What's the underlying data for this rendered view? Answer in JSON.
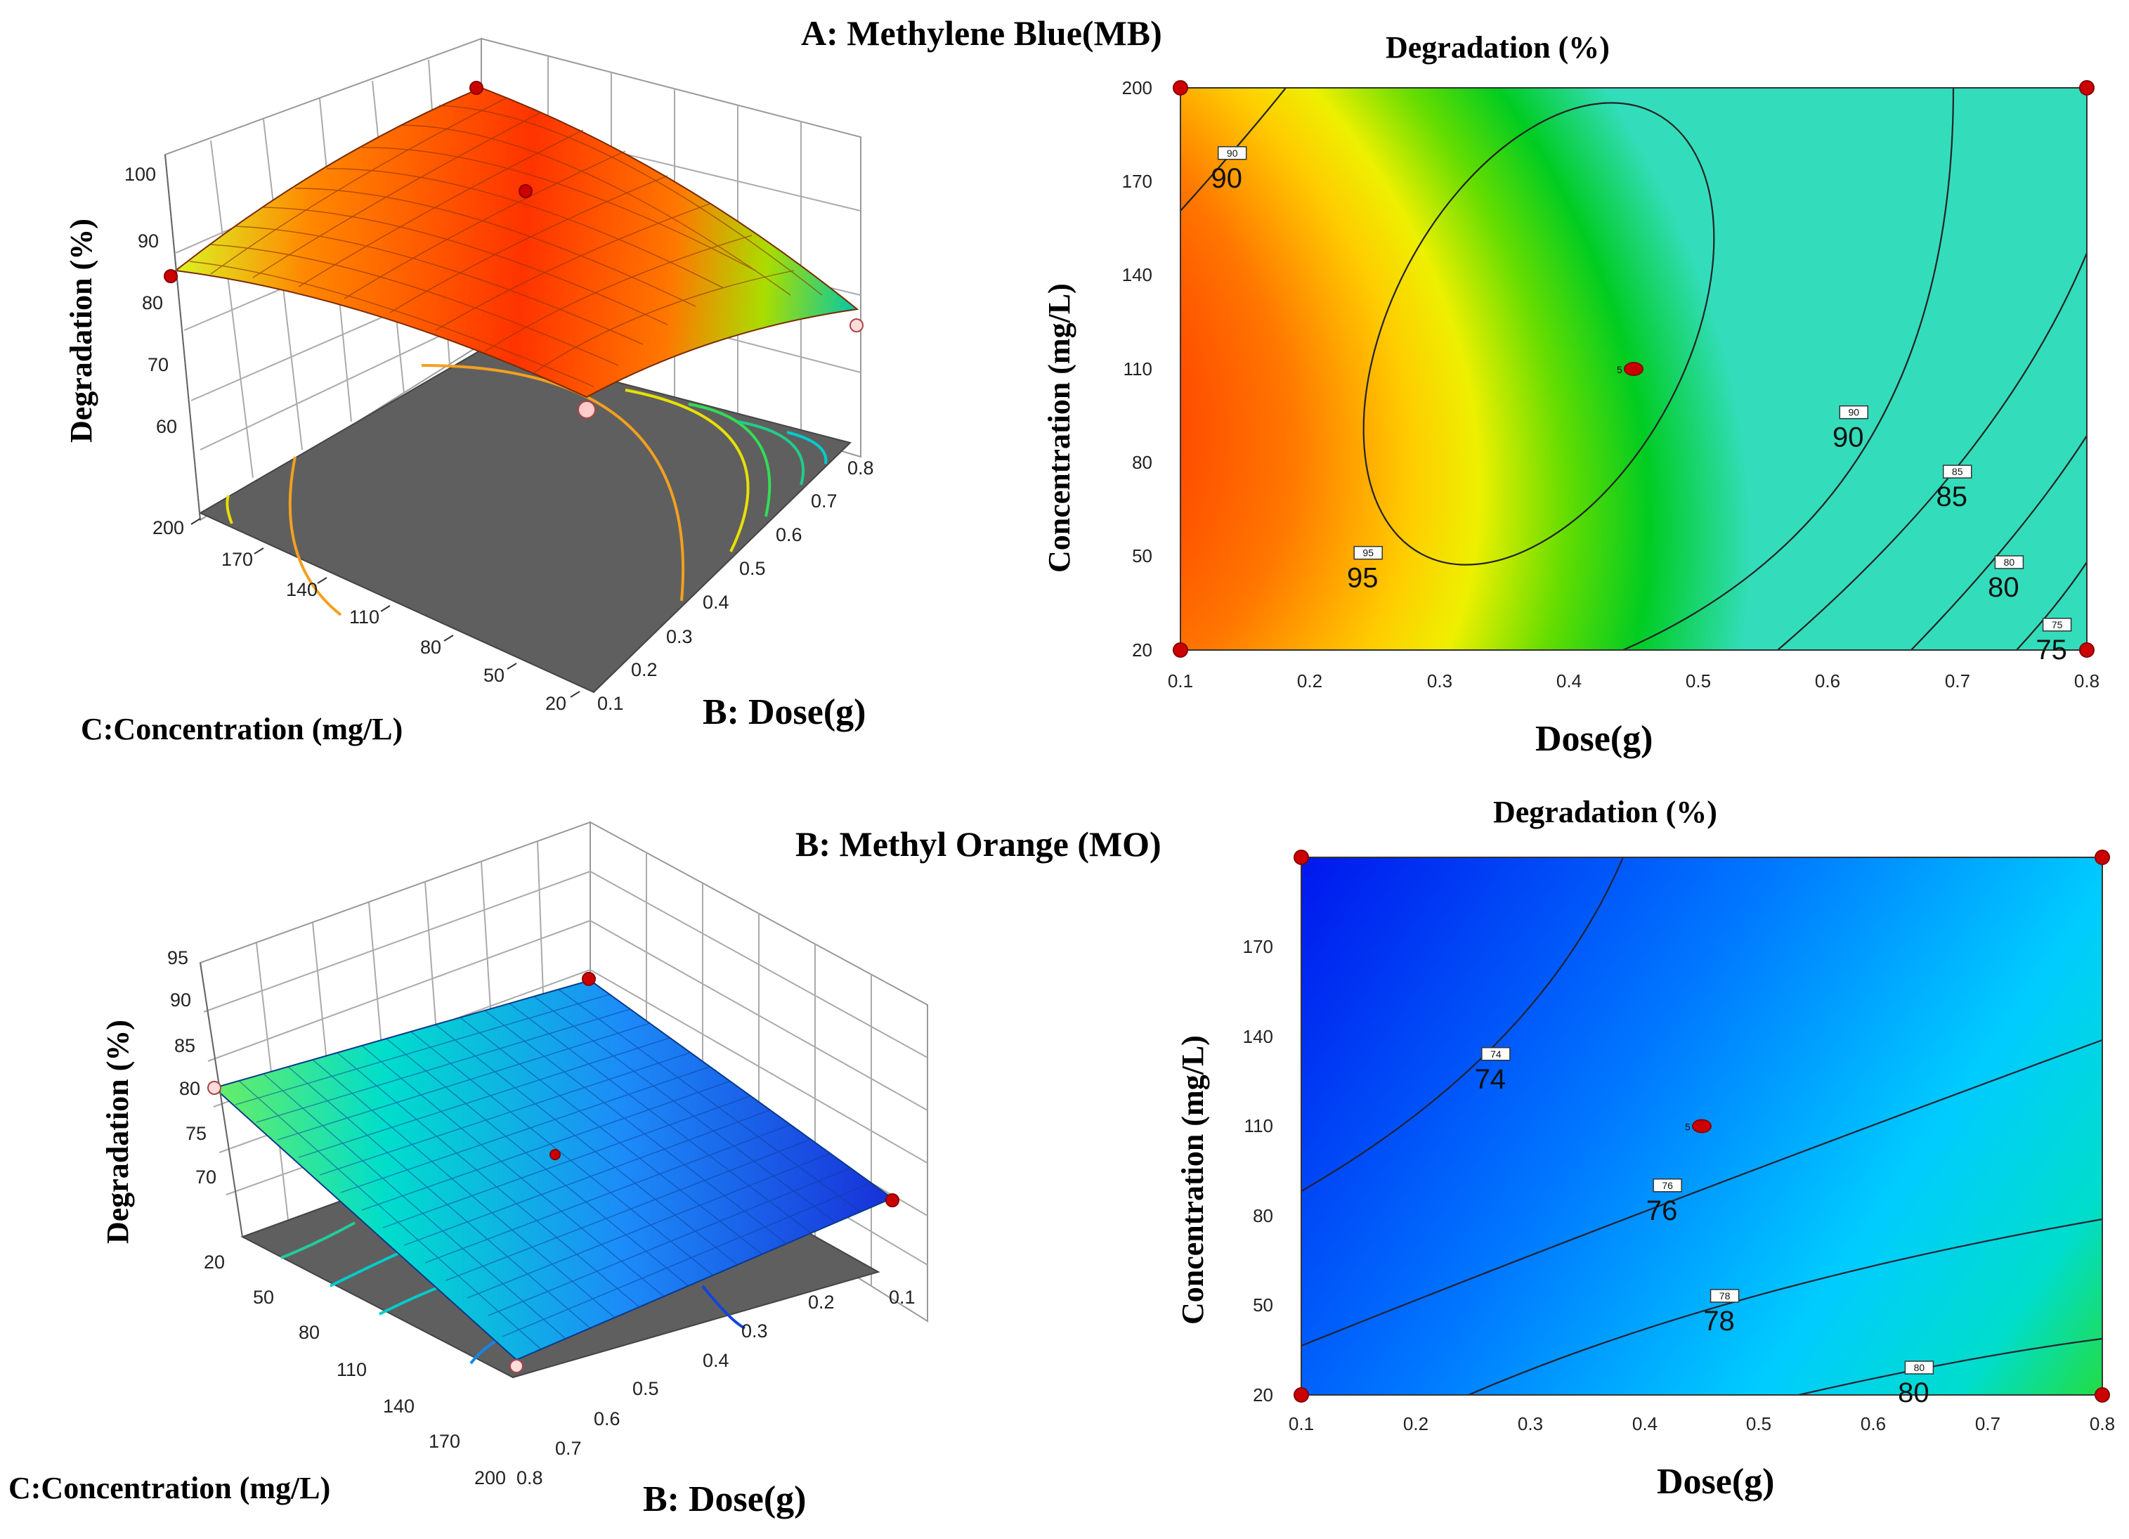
{
  "panels": {
    "mb": {
      "label": "A: Methylene Blue(MB)"
    },
    "mo": {
      "label": "B: Methyl Orange (MO)"
    }
  },
  "colors": {
    "mb_map": [
      "#00cc33",
      "#33dd00",
      "#bbee00",
      "#ffee00",
      "#ffaa00",
      "#ff6600",
      "#ff2200"
    ],
    "mo_map": [
      "#0022ee",
      "#0088ff",
      "#00ddff",
      "#22ee66"
    ],
    "floor": "#5f5f5f",
    "design_point": "#cc0000"
  },
  "chart_data": [
    {
      "id": "mb_surface",
      "type": "surface3d",
      "zlabel": "Degradation (%)",
      "xlabel": "B: Dose(g)",
      "ylabel": "C:Concentration  (mg/L)",
      "zticks": [
        "60",
        "70",
        "80",
        "90",
        "100"
      ],
      "xticks": [
        "0.1",
        "0.2",
        "0.3",
        "0.4",
        "0.5",
        "0.6",
        "0.7",
        "0.8"
      ],
      "yticks": [
        "200",
        "170",
        "140",
        "110",
        "80",
        "50",
        "20"
      ],
      "xlim": [
        0.1,
        0.8
      ],
      "ylim": [
        20,
        200
      ],
      "zlim": [
        55,
        105
      ]
    },
    {
      "id": "mb_contour",
      "type": "contour",
      "title": "Degradation (%)",
      "xlabel": "Dose(g)",
      "ylabel": "Concentration  (mg/L)",
      "xticks": [
        "0.1",
        "0.2",
        "0.3",
        "0.4",
        "0.5",
        "0.6",
        "0.7",
        "0.8"
      ],
      "yticks": [
        "20",
        "50",
        "80",
        "110",
        "140",
        "170",
        "200"
      ],
      "xlim": [
        0.1,
        0.8
      ],
      "ylim": [
        20,
        200
      ],
      "levels": [
        {
          "value": 95,
          "label": "95",
          "box": "95",
          "x": 0.245,
          "y": 50
        },
        {
          "value": 90,
          "label": "90",
          "box": "90",
          "x": 0.62,
          "y": 95
        },
        {
          "value": 90,
          "label": "90",
          "box": "90",
          "x": 0.14,
          "y": 178
        },
        {
          "value": 85,
          "label": "85",
          "box": "85",
          "x": 0.7,
          "y": 76
        },
        {
          "value": 80,
          "label": "80",
          "box": "80",
          "x": 0.74,
          "y": 47
        },
        {
          "value": 75,
          "label": "75",
          "box": "75",
          "x": 0.777,
          "y": 27
        }
      ],
      "center_point": {
        "x": 0.45,
        "y": 110,
        "label": "5"
      },
      "design_points": [
        [
          0.1,
          20
        ],
        [
          0.1,
          200
        ],
        [
          0.8,
          20
        ],
        [
          0.8,
          200
        ]
      ]
    },
    {
      "id": "mo_surface",
      "type": "surface3d",
      "zlabel": "Degradation (%)",
      "xlabel": "B: Dose(g)",
      "ylabel": "C:Concentration  (mg/L)",
      "zticks": [
        "70",
        "75",
        "80",
        "85",
        "90",
        "95"
      ],
      "xticks": [
        "0.8",
        "0.7",
        "0.6",
        "0.5",
        "0.4",
        "0.3",
        "0.2",
        "0.1"
      ],
      "yticks": [
        "20",
        "50",
        "80",
        "110",
        "140",
        "170",
        "200"
      ],
      "xlim": [
        0.1,
        0.8
      ],
      "ylim": [
        20,
        200
      ],
      "zlim": [
        65,
        95
      ]
    },
    {
      "id": "mo_contour",
      "type": "contour",
      "title": "Degradation (%)",
      "xlabel": "Dose(g)",
      "ylabel": "Concentration  (mg/L)",
      "xticks": [
        "0.1",
        "0.2",
        "0.3",
        "0.4",
        "0.5",
        "0.6",
        "0.7",
        "0.8"
      ],
      "yticks": [
        "20",
        "50",
        "80",
        "110",
        "140",
        "170"
      ],
      "xlim": [
        0.1,
        0.8
      ],
      "ylim": [
        20,
        200
      ],
      "levels": [
        {
          "value": 74,
          "label": "74",
          "box": "74",
          "x": 0.27,
          "y": 133
        },
        {
          "value": 76,
          "label": "76",
          "box": "76",
          "x": 0.42,
          "y": 89
        },
        {
          "value": 78,
          "label": "78",
          "box": "78",
          "x": 0.47,
          "y": 52
        },
        {
          "value": 80,
          "label": "80",
          "box": "80",
          "x": 0.64,
          "y": 28
        }
      ],
      "center_point": {
        "x": 0.45,
        "y": 110,
        "label": "5"
      },
      "design_points": [
        [
          0.1,
          20
        ],
        [
          0.1,
          200
        ],
        [
          0.8,
          20
        ],
        [
          0.8,
          200
        ]
      ]
    }
  ]
}
